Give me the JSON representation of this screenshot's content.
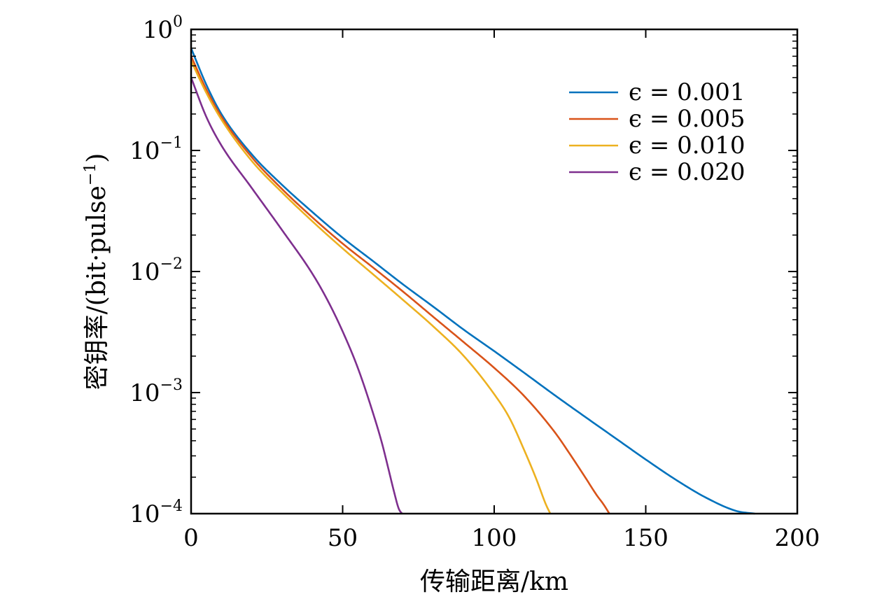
{
  "chart_data": {
    "type": "line",
    "title": "",
    "xlabel": "传输距离/km",
    "ylabel": "密钥率/(bit·pulse",
    "ylabel_sup": "−1",
    "ylabel_close": ")",
    "xlim": [
      0,
      200
    ],
    "ylim": [
      0.0001,
      1
    ],
    "yscale": "log",
    "grid": false,
    "legend_position": "top-right",
    "x_ticks": [
      {
        "value": 0,
        "label": "0"
      },
      {
        "value": 50,
        "label": "50"
      },
      {
        "value": 100,
        "label": "100"
      },
      {
        "value": 150,
        "label": "150"
      },
      {
        "value": 200,
        "label": "200"
      }
    ],
    "y_ticks": [
      {
        "value": 1,
        "base": "10",
        "exp": "0"
      },
      {
        "value": 0.1,
        "base": "10",
        "exp": "−1"
      },
      {
        "value": 0.01,
        "base": "10",
        "exp": "−2"
      },
      {
        "value": 0.001,
        "base": "10",
        "exp": "−3"
      },
      {
        "value": 0.0001,
        "base": "10",
        "exp": "−4"
      }
    ],
    "series": [
      {
        "name": "ϵ = 0.001",
        "color": "#0072bd",
        "x": [
          0,
          5,
          10,
          20,
          30,
          40,
          50,
          60,
          70,
          80,
          90,
          100,
          110,
          120,
          130,
          140,
          150,
          160,
          170,
          180,
          186
        ],
        "y": [
          0.7,
          0.35,
          0.2,
          0.093,
          0.052,
          0.031,
          0.019,
          0.0122,
          0.0078,
          0.0051,
          0.0033,
          0.0022,
          0.00145,
          0.00095,
          0.00063,
          0.00042,
          0.00028,
          0.00019,
          0.000135,
          0.000105,
          0.0001
        ]
      },
      {
        "name": "ϵ = 0.005",
        "color": "#d95319",
        "x": [
          0,
          5,
          10,
          20,
          30,
          40,
          50,
          60,
          70,
          80,
          90,
          100,
          110,
          120,
          125,
          130,
          134,
          136,
          138
        ],
        "y": [
          0.6,
          0.32,
          0.19,
          0.088,
          0.048,
          0.028,
          0.017,
          0.0108,
          0.0068,
          0.0042,
          0.0026,
          0.0016,
          0.00093,
          0.00047,
          0.00031,
          0.0002,
          0.00014,
          0.00012,
          0.0001
        ]
      },
      {
        "name": "ϵ = 0.010",
        "color": "#edb120",
        "x": [
          0,
          5,
          10,
          20,
          30,
          40,
          50,
          60,
          70,
          80,
          90,
          100,
          105,
          110,
          114,
          117,
          118.5
        ],
        "y": [
          0.55,
          0.3,
          0.18,
          0.082,
          0.045,
          0.026,
          0.0155,
          0.0095,
          0.0058,
          0.0035,
          0.002,
          0.00097,
          0.00062,
          0.00033,
          0.00019,
          0.00012,
          0.0001
        ]
      },
      {
        "name": "ϵ = 0.020",
        "color": "#7e2f8e",
        "x": [
          0,
          5,
          10,
          20,
          30,
          40,
          45,
          50,
          55,
          60,
          63,
          65,
          67,
          68.5,
          69.3,
          69.7
        ],
        "y": [
          0.4,
          0.19,
          0.11,
          0.049,
          0.022,
          0.0096,
          0.0058,
          0.0032,
          0.0016,
          0.00068,
          0.00038,
          0.00024,
          0.00015,
          0.00011,
          0.000102,
          0.0001
        ]
      }
    ]
  }
}
